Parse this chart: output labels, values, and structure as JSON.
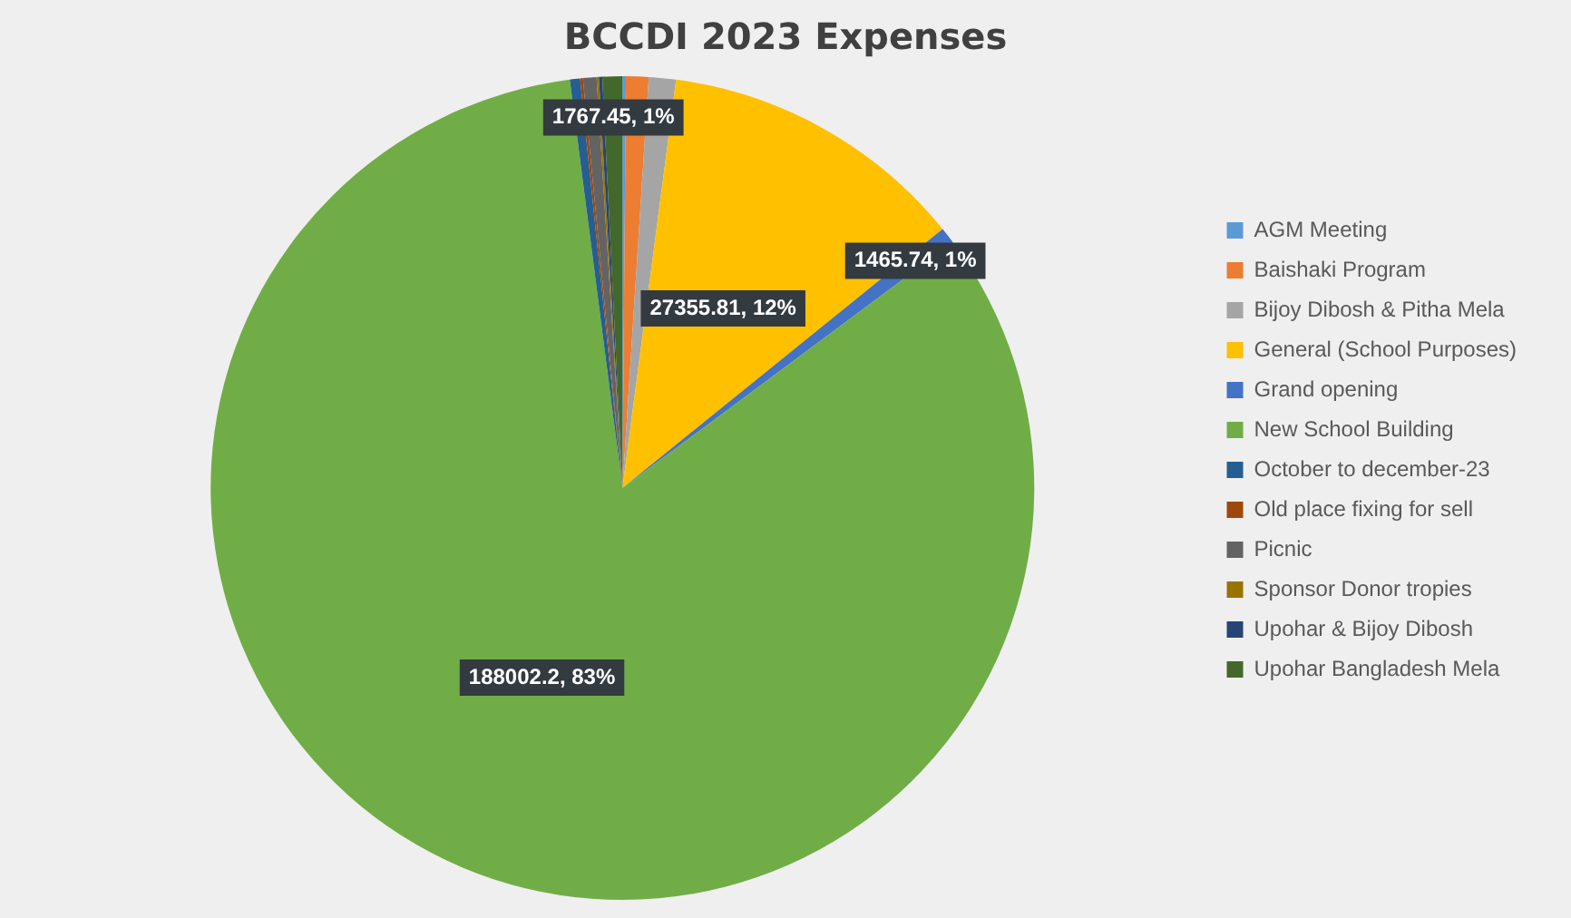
{
  "chart_data": {
    "type": "pie",
    "title": "BCCDI 2023 Expenses",
    "categories": [
      "AGM Meeting",
      "Baishaki Program",
      "Bijoy Dibosh & Pitha Mela",
      "General (School Purposes)",
      "Grand opening",
      "New School Building",
      "October to december-23",
      "Old place fixing for sell",
      "Picnic",
      "Sponsor Donor tropies",
      "Upohar & Bijoy Dibosh",
      "Upohar Bangladesh Mela"
    ],
    "values": [
      300,
      2000,
      2400,
      27355.81,
      1465.74,
      188002.2,
      900,
      250,
      1200,
      200,
      300,
      1767.45
    ],
    "colors": [
      "#5b9bd5",
      "#ed7d31",
      "#a5a5a5",
      "#ffc000",
      "#4472c4",
      "#70ad47",
      "#255e91",
      "#9e480e",
      "#636363",
      "#997300",
      "#264478",
      "#43682b"
    ],
    "value_labels": [
      null,
      null,
      null,
      "27355.81, 12%",
      "1465.74, 1%",
      "188002.2, 83%",
      null,
      null,
      null,
      null,
      null,
      "1767.45, 1%"
    ],
    "legend": "right"
  }
}
